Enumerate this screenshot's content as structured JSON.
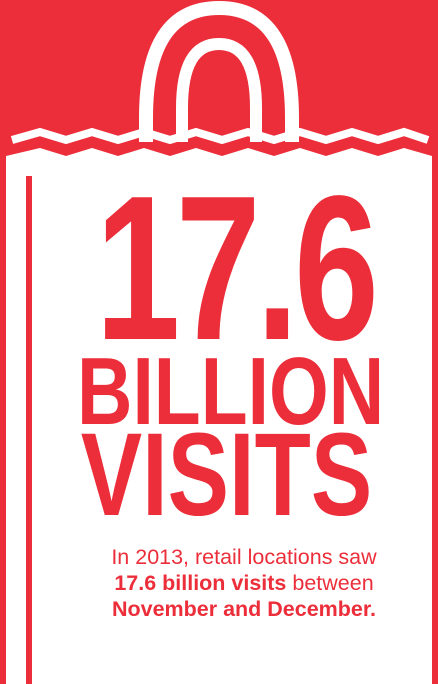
{
  "headline": {
    "number": "17.6",
    "unit_line1": "BILLION",
    "unit_line2": "VISITS"
  },
  "caption": {
    "line1": "In 2013, retail locations saw",
    "line2_bold": "17.6 billion visits",
    "line2_rest": " between",
    "line3_bold": "November and December."
  },
  "colors": {
    "background": "#ec2e3a",
    "bag": "#ffffff",
    "text": "#ec2e3a"
  },
  "icons": [
    "shopping-bag-icon"
  ]
}
